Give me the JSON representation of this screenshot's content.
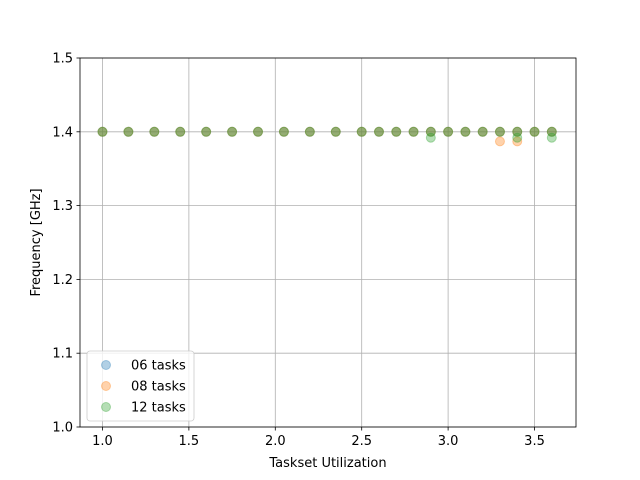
{
  "chart_data": {
    "type": "scatter",
    "title": "",
    "xlabel": "Taskset Utilization",
    "ylabel": "Frequency [GHz]",
    "xlim": [
      0.87,
      3.74
    ],
    "ylim": [
      1.0,
      1.5
    ],
    "xticks": [
      1.0,
      1.5,
      2.0,
      2.5,
      3.0,
      3.5
    ],
    "xtick_labels": [
      "1.0",
      "1.5",
      "2.0",
      "2.5",
      "3.0",
      "3.5"
    ],
    "yticks": [
      1.0,
      1.1,
      1.2,
      1.3,
      1.4,
      1.5
    ],
    "ytick_labels": [
      "1.0",
      "1.1",
      "1.2",
      "1.3",
      "1.4",
      "1.5"
    ],
    "grid": true,
    "legend_position": "lower-left",
    "series": [
      {
        "name": "06 tasks",
        "color": "#1f77b4",
        "x": [
          1.0,
          1.15,
          1.3,
          1.45,
          1.6,
          1.75,
          1.9,
          2.05,
          2.2,
          2.35,
          2.5,
          2.6,
          2.7,
          2.8,
          2.9,
          3.0,
          3.1,
          3.2,
          3.3,
          3.4,
          3.5,
          3.6
        ],
        "y": [
          1.4,
          1.4,
          1.4,
          1.4,
          1.4,
          1.4,
          1.4,
          1.4,
          1.4,
          1.4,
          1.4,
          1.4,
          1.4,
          1.4,
          1.4,
          1.4,
          1.4,
          1.4,
          1.4,
          1.4,
          1.4,
          1.4
        ]
      },
      {
        "name": "08 tasks",
        "color": "#ff7f0e",
        "x": [
          1.0,
          1.15,
          1.3,
          1.45,
          1.6,
          1.75,
          1.9,
          2.05,
          2.2,
          2.35,
          2.5,
          2.6,
          2.7,
          2.8,
          2.9,
          3.0,
          3.1,
          3.2,
          3.3,
          3.3,
          3.4,
          3.4,
          3.5,
          3.6
        ],
        "y": [
          1.4,
          1.4,
          1.4,
          1.4,
          1.4,
          1.4,
          1.4,
          1.4,
          1.4,
          1.4,
          1.4,
          1.4,
          1.4,
          1.4,
          1.4,
          1.4,
          1.4,
          1.4,
          1.4,
          1.387,
          1.4,
          1.387,
          1.4,
          1.4
        ]
      },
      {
        "name": "12 tasks",
        "color": "#2ca02c",
        "x": [
          1.0,
          1.15,
          1.3,
          1.45,
          1.6,
          1.75,
          1.9,
          2.05,
          2.2,
          2.35,
          2.5,
          2.6,
          2.7,
          2.8,
          2.9,
          2.9,
          3.0,
          3.1,
          3.2,
          3.3,
          3.4,
          3.4,
          3.5,
          3.6,
          3.6
        ],
        "y": [
          1.4,
          1.4,
          1.4,
          1.4,
          1.4,
          1.4,
          1.4,
          1.4,
          1.4,
          1.4,
          1.4,
          1.4,
          1.4,
          1.4,
          1.4,
          1.392,
          1.4,
          1.4,
          1.4,
          1.4,
          1.4,
          1.392,
          1.4,
          1.4,
          1.392
        ]
      }
    ]
  }
}
